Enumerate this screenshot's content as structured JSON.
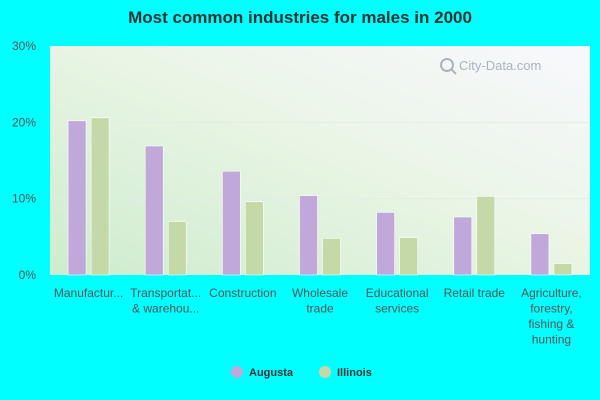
{
  "chart_data": {
    "type": "bar",
    "title": "Most common industries for males in 2000",
    "categories": [
      [
        "Manufactur..."
      ],
      [
        "Transportat...",
        "& warehou..."
      ],
      [
        "Construction"
      ],
      [
        "Wholesale",
        "trade"
      ],
      [
        "Educational",
        "services"
      ],
      [
        "Retail trade"
      ],
      [
        "Agriculture,",
        "forestry,",
        "fishing &",
        "hunting"
      ]
    ],
    "series": [
      {
        "name": "Augusta",
        "color": "#c0a9da",
        "values": [
          20.2,
          16.9,
          13.6,
          10.4,
          8.2,
          7.6,
          5.4
        ]
      },
      {
        "name": "Illinois",
        "color": "#c5d9a8",
        "values": [
          20.6,
          7.0,
          9.6,
          4.8,
          4.9,
          10.3,
          1.5
        ]
      }
    ],
    "ylim": [
      0,
      30
    ],
    "yticks": [
      0,
      10,
      20,
      30
    ],
    "ytick_labels": [
      "0%",
      "10%",
      "20%",
      "30%"
    ],
    "xlabel": "",
    "ylabel": "",
    "legend_position": "bottom",
    "watermark": "City-Data.com"
  }
}
